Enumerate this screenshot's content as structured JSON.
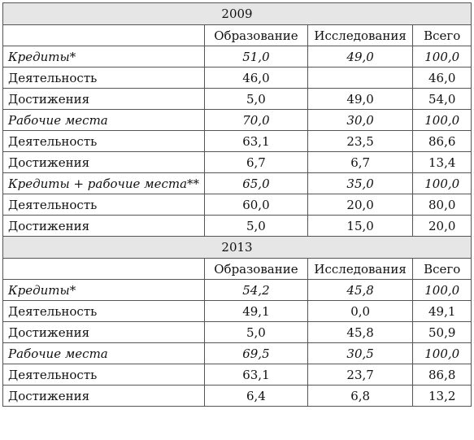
{
  "blocks": [
    {
      "year": "2009",
      "headers": [
        "",
        "Образование",
        "Исследования",
        "Всего"
      ],
      "rows": [
        {
          "label": "Кредиты*",
          "edu": "51,0",
          "res": "49,0",
          "total": "100,0",
          "italic": true
        },
        {
          "label": "Деятельность",
          "edu": "46,0",
          "res": "",
          "total": "46,0",
          "italic": false
        },
        {
          "label": "Достижения",
          "edu": "5,0",
          "res": "49,0",
          "total": "54,0",
          "italic": false
        },
        {
          "label": "Рабочие места",
          "edu": "70,0",
          "res": "30,0",
          "total": "100,0",
          "italic": true
        },
        {
          "label": "Деятельность",
          "edu": "63,1",
          "res": "23,5",
          "total": "86,6",
          "italic": false
        },
        {
          "label": "Достижения",
          "edu": "6,7",
          "res": "6,7",
          "total": "13,4",
          "italic": false
        },
        {
          "label": "Кредиты + рабочие места**",
          "edu": "65,0",
          "res": "35,0",
          "total": "100,0",
          "italic": true
        },
        {
          "label": "Деятельность",
          "edu": "60,0",
          "res": "20,0",
          "total": "80,0",
          "italic": false
        },
        {
          "label": "Достижения",
          "edu": "5,0",
          "res": "15,0",
          "total": "20,0",
          "italic": false
        }
      ]
    },
    {
      "year": "2013",
      "headers": [
        "",
        "Образование",
        "Исследования",
        "Всего"
      ],
      "rows": [
        {
          "label": "Кредиты*",
          "edu": "54,2",
          "res": "45,8",
          "total": "100,0",
          "italic": true
        },
        {
          "label": "Деятельность",
          "edu": "49,1",
          "res": "0,0",
          "total": "49,1",
          "italic": false
        },
        {
          "label": "Достижения",
          "edu": "5,0",
          "res": "45,8",
          "total": "50,9",
          "italic": false
        },
        {
          "label": "Рабочие места",
          "edu": "69,5",
          "res": "30,5",
          "total": "100,0",
          "italic": true
        },
        {
          "label": "Деятельность",
          "edu": "63,1",
          "res": "23,7",
          "total": "86,8",
          "italic": false
        },
        {
          "label": "Достижения",
          "edu": "6,4",
          "res": "6,8",
          "total": "13,2",
          "italic": false
        }
      ]
    }
  ]
}
